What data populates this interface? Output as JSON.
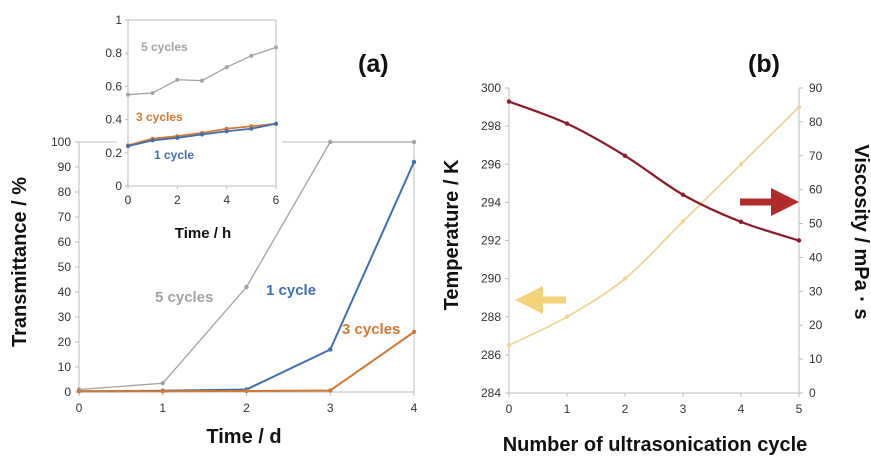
{
  "colors": {
    "gray": "#a3a3a3",
    "blue": "#3f6fb0",
    "orange": "#d27a33",
    "darkred": "#8b1a2b",
    "lightyellow": "#f0d596",
    "arrow_red": "#b22b2b",
    "arrow_yellow": "#f3d27a"
  },
  "chart_data": [
    {
      "panel": "(a)",
      "type": "line",
      "xlabel": "Time / d",
      "ylabel": "Transmittance / %",
      "xlim": [
        0,
        4
      ],
      "ylim": [
        0,
        100
      ],
      "xticks": [
        "0",
        "1",
        "2",
        "3",
        "4"
      ],
      "yticks": [
        "0",
        "10",
        "20",
        "30",
        "40",
        "50",
        "60",
        "70",
        "80",
        "90",
        "100"
      ],
      "series": [
        {
          "name": "5 cycles",
          "color": "gray",
          "x": [
            0,
            1,
            2,
            3,
            4
          ],
          "values": [
            1,
            3.5,
            42,
            100,
            100
          ]
        },
        {
          "name": "1 cycle",
          "color": "blue",
          "x": [
            0,
            1,
            2,
            3,
            4
          ],
          "values": [
            0.3,
            0.5,
            1,
            17,
            92
          ]
        },
        {
          "name": "3 cycles",
          "color": "orange",
          "x": [
            0,
            1,
            2,
            3,
            4
          ],
          "values": [
            0.3,
            0.3,
            0.4,
            0.6,
            24
          ]
        }
      ]
    },
    {
      "panel": "(a) inset",
      "type": "line",
      "xlabel": "Time / h",
      "ylabel": "",
      "xlim": [
        0,
        6
      ],
      "ylim": [
        0,
        1
      ],
      "xticks": [
        "0",
        "2",
        "4",
        "6"
      ],
      "yticks": [
        "0",
        "0.2",
        "0.4",
        "0.6",
        "0.8",
        "1"
      ],
      "series": [
        {
          "name": "5 cycles",
          "color": "gray",
          "x": [
            0,
            1,
            2,
            3,
            4,
            5,
            6
          ],
          "values": [
            0.55,
            0.56,
            0.64,
            0.635,
            0.715,
            0.785,
            0.835
          ]
        },
        {
          "name": "3 cycles",
          "color": "orange",
          "x": [
            0,
            1,
            2,
            3,
            4,
            5,
            6
          ],
          "values": [
            0.245,
            0.285,
            0.3,
            0.32,
            0.345,
            0.36,
            0.375
          ]
        },
        {
          "name": "1 cycle",
          "color": "blue",
          "x": [
            0,
            1,
            2,
            3,
            4,
            5,
            6
          ],
          "values": [
            0.24,
            0.275,
            0.29,
            0.31,
            0.33,
            0.345,
            0.375
          ]
        }
      ]
    },
    {
      "panel": "(b)",
      "type": "line",
      "xlabel": "Number of ultrasonication cycle",
      "ylabel": "Temperature / K",
      "y2label": "Viscosity / mPa · s",
      "xlim": [
        0,
        5
      ],
      "ylim": [
        284,
        300
      ],
      "y2lim": [
        0,
        90
      ],
      "xticks": [
        "0",
        "1",
        "2",
        "3",
        "4",
        "5"
      ],
      "yticks": [
        "284",
        "286",
        "288",
        "290",
        "292",
        "294",
        "296",
        "298",
        "300"
      ],
      "y2ticks": [
        "0",
        "10",
        "20",
        "30",
        "40",
        "50",
        "60",
        "70",
        "80",
        "90"
      ],
      "series": [
        {
          "name": "Temperature",
          "axis": "left",
          "color": "lightyellow",
          "x": [
            0,
            1,
            2,
            3,
            4,
            5
          ],
          "values": [
            286.5,
            288,
            290,
            293,
            296,
            299
          ]
        },
        {
          "name": "Viscosity",
          "axis": "right",
          "color": "darkred",
          "x": [
            0,
            1,
            2,
            3,
            4,
            5
          ],
          "values": [
            86,
            79.5,
            70,
            58.5,
            50.5,
            45
          ]
        }
      ]
    }
  ]
}
